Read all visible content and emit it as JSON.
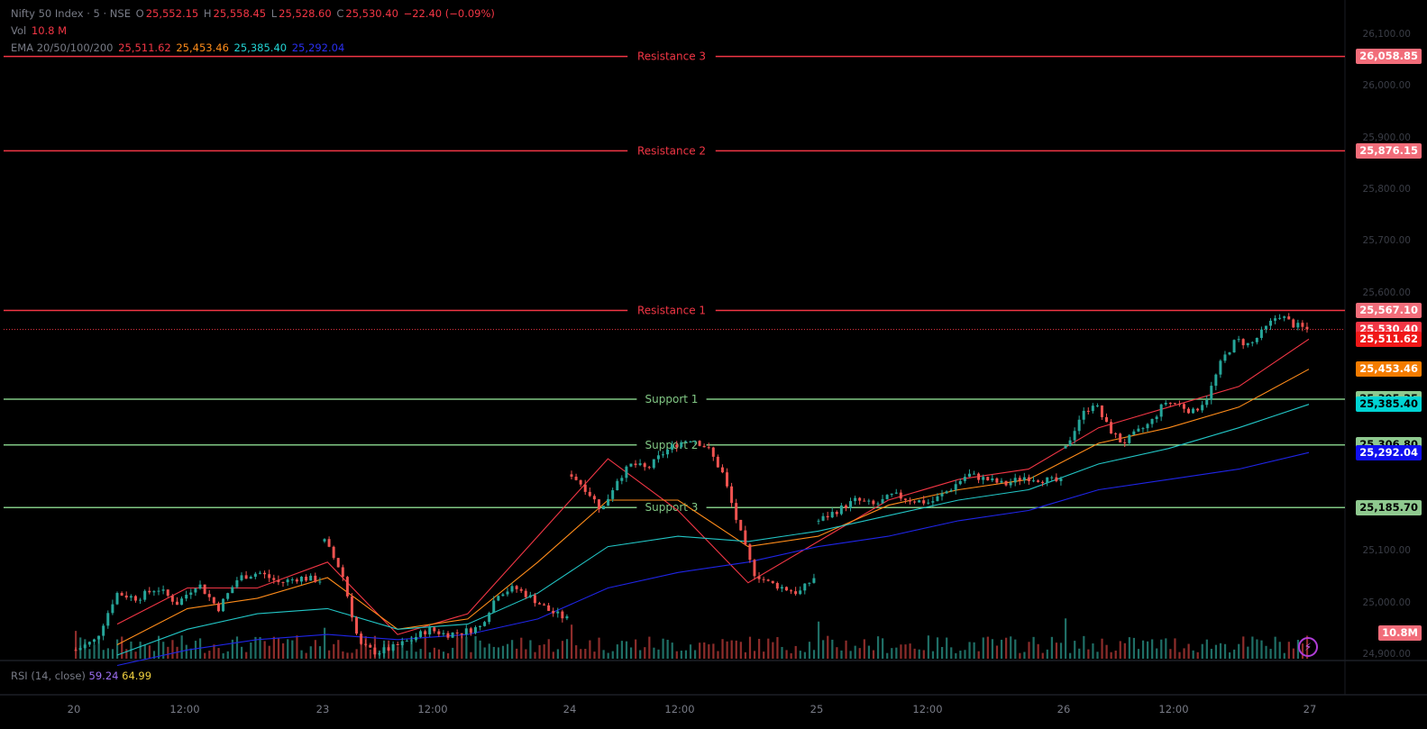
{
  "header": {
    "symbol": "Nifty 50 Index · 5 · NSE",
    "o_label": "O",
    "o": "25,552.15",
    "h_label": "H",
    "h": "25,558.45",
    "l_label": "L",
    "l": "25,528.60",
    "c_label": "C",
    "c": "25,530.40",
    "change": "−22.40 (−0.09%)",
    "vol_label": "Vol",
    "vol": "10.8 M",
    "ema_label": "EMA 20/50/100/200",
    "ema20": "25,511.62",
    "ema50": "25,453.46",
    "ema100": "25,385.40",
    "ema200": "25,292.04"
  },
  "rsi": {
    "label": "RSI (14, close)",
    "value1": "59.24",
    "value2": "64.99"
  },
  "colors": {
    "resistance": "#f23645",
    "support": "#81c784",
    "ema20": "#f23645",
    "ema50": "#ff8c1a",
    "ema100": "#22c6c6",
    "ema200": "#1f25e8",
    "up": "#26a69a",
    "down": "#ef5350"
  },
  "chart_data": {
    "type": "candlestick",
    "price_axis": {
      "ylim": [
        24900,
        26100
      ],
      "ticks": [
        "26,100.00",
        "26,000.00",
        "25,900.00",
        "25,800.00",
        "25,700.00",
        "25,600.00",
        "25,100.00",
        "25,000.00",
        "24,900.00"
      ],
      "tick_values": [
        26100,
        26000,
        25900,
        25800,
        25700,
        25600,
        25100,
        25000,
        24900
      ]
    },
    "time_axis": {
      "labels": [
        "20",
        "12:00",
        "23",
        "12:00",
        "24",
        "12:00",
        "25",
        "12:00",
        "26",
        "12:00",
        "27"
      ]
    },
    "levels": [
      {
        "name": "Resistance 3",
        "value": 26058.85,
        "label": "26,058.85",
        "kind": "resistance"
      },
      {
        "name": "Resistance 2",
        "value": 25876.15,
        "label": "25,876.15",
        "kind": "resistance"
      },
      {
        "name": "Resistance 1",
        "value": 25567.1,
        "label": "25,567.10",
        "kind": "resistance"
      },
      {
        "name": "Support 1",
        "value": 25395.35,
        "label": "25,395.35",
        "kind": "support"
      },
      {
        "name": "Support 2",
        "value": 25306.8,
        "label": "25,306.80",
        "kind": "support"
      },
      {
        "name": "Support 3",
        "value": 25185.7,
        "label": "25,185.70",
        "kind": "support"
      }
    ],
    "last_price": {
      "value": 25530.4,
      "label": "25,530.40"
    },
    "ema_tags": [
      {
        "value": 25511.62,
        "label": "25,511.62",
        "color": "#f01818"
      },
      {
        "value": 25453.46,
        "label": "25,453.46",
        "color": "#f57c00"
      },
      {
        "value": 25385.4,
        "label": "25,385.40",
        "color": "#00d4d4"
      },
      {
        "value": 25292.04,
        "label": "25,292.04",
        "color": "#1010f0"
      }
    ],
    "volume_tag": "10.8M",
    "price_path_days": [
      {
        "day": "20",
        "points": [
          24910,
          24930,
          25020,
          25010,
          25030,
          25000,
          25040,
          24990,
          25050,
          25060,
          25040,
          25050,
          25045
        ]
      },
      {
        "day": "23",
        "points": [
          25120,
          25060,
          24920,
          24905,
          24915,
          24930,
          24950,
          24940,
          24945,
          24955,
          25020,
          25030,
          25010,
          24985,
          24970
        ]
      },
      {
        "day": "24",
        "points": [
          25250,
          25220,
          25180,
          25240,
          25270,
          25260,
          25290,
          25310,
          25320,
          25300,
          25250,
          25150,
          25060,
          25040,
          25030,
          25020,
          25050
        ]
      },
      {
        "day": "25",
        "points": [
          25160,
          25180,
          25200,
          25190,
          25210,
          25200,
          25195,
          25220,
          25250,
          25240,
          25230,
          25245,
          25240,
          25235
        ]
      },
      {
        "day": "26",
        "points": [
          25300,
          25360,
          25390,
          25340,
          25310,
          25330,
          25350,
          25390,
          25385,
          25370,
          25400,
          25470,
          25510,
          25500,
          25530,
          25560,
          25540,
          25530
        ]
      }
    ],
    "ema_paths": {
      "ema20": [
        24960,
        25030,
        25030,
        25080,
        24940,
        24980,
        25130,
        25280,
        25180,
        25040,
        25120,
        25200,
        25240,
        25260,
        25340,
        25380,
        25420,
        25511.62
      ],
      "ema50": [
        24920,
        24990,
        25010,
        25050,
        24950,
        24970,
        25080,
        25200,
        25200,
        25110,
        25130,
        25190,
        25220,
        25240,
        25310,
        25340,
        25380,
        25453.46
      ],
      "ema100": [
        24900,
        24950,
        24980,
        24990,
        24950,
        24960,
        25020,
        25110,
        25130,
        25120,
        25140,
        25170,
        25200,
        25220,
        25270,
        25300,
        25340,
        25385.4
      ],
      "ema200": [
        24880,
        24910,
        24930,
        24940,
        24930,
        24940,
        24970,
        25030,
        25060,
        25080,
        25110,
        25130,
        25160,
        25180,
        25220,
        25240,
        25260,
        25292.04
      ]
    }
  }
}
